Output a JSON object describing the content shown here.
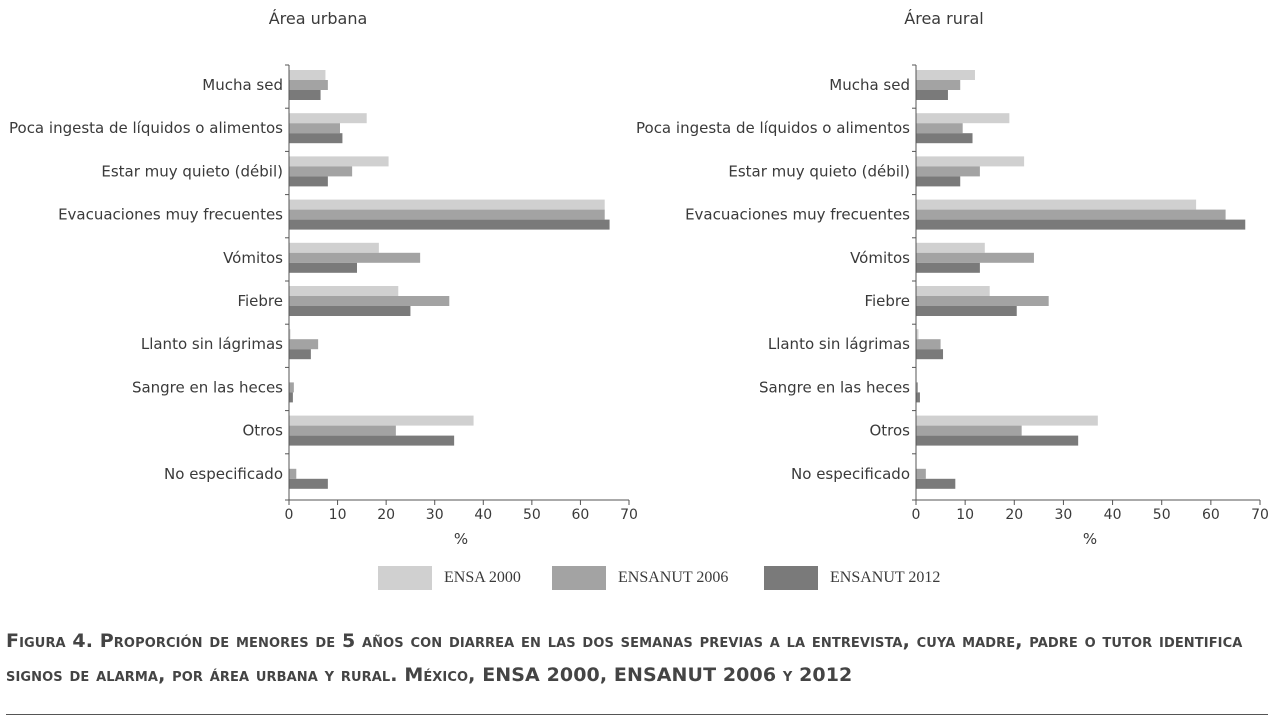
{
  "chart_data": {
    "type": "bar",
    "orientation": "horizontal",
    "categories": [
      "Mucha sed",
      "Poca ingesta de líquidos o alimentos",
      "Estar muy quieto (débil)",
      "Evacuaciones muy frecuentes",
      "Vómitos",
      "Fiebre",
      "Llanto sin lágrimas",
      "Sangre en las heces",
      "Otros",
      "No especificado"
    ],
    "series_names": [
      "ENSA 2000",
      "ENSANUT 2006",
      "ENSANUT 2012"
    ],
    "colors": [
      "#d0d0d0",
      "#a3a3a3",
      "#7a7a7a"
    ],
    "xlabel": "%",
    "xlim": [
      0,
      70
    ],
    "xticks": [
      "0",
      "10",
      "20",
      "30",
      "40",
      "50",
      "60",
      "70"
    ],
    "grid": false,
    "legend_position": "bottom",
    "panels": [
      {
        "title": "Área urbana",
        "series": [
          {
            "name": "ENSA 2000",
            "values": [
              7.5,
              16,
              20.5,
              65,
              18.5,
              22.5,
              0.3,
              0,
              38,
              0
            ]
          },
          {
            "name": "ENSANUT 2006",
            "values": [
              8,
              10.5,
              13,
              65,
              27,
              33,
              6,
              1,
              22,
              1.5
            ]
          },
          {
            "name": "ENSANUT 2012",
            "values": [
              6.5,
              11,
              8,
              66,
              14,
              25,
              4.5,
              0.8,
              34,
              8
            ]
          }
        ]
      },
      {
        "title": "Área rural",
        "series": [
          {
            "name": "ENSA 2000",
            "values": [
              12,
              19,
              22,
              57,
              14,
              15,
              0.5,
              0,
              37,
              0
            ]
          },
          {
            "name": "ENSANUT 2006",
            "values": [
              9,
              9.5,
              13,
              63,
              24,
              27,
              5,
              0.4,
              21.5,
              2
            ]
          },
          {
            "name": "ENSANUT 2012",
            "values": [
              6.5,
              11.5,
              9,
              67,
              13,
              20.5,
              5.5,
              0.8,
              33,
              8
            ]
          }
        ]
      }
    ]
  },
  "caption": "Figura 4. Proporción de menores de 5 años con diarrea en las dos semanas previas a la entrevista, cuya madre, padre o tutor identifica signos de alarma, por área urbana y rural. México, ENSA 2000, ENSANUT 2006 y 2012"
}
